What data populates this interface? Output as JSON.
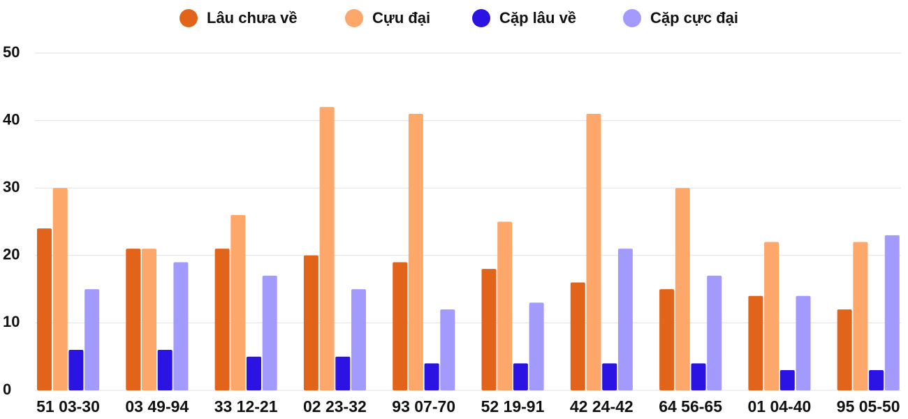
{
  "chart_data": {
    "type": "bar",
    "categories": [
      "51 03-30",
      "03 49-94",
      "33 12-21",
      "02 23-32",
      "93 07-70",
      "52 19-91",
      "42 24-42",
      "64 56-65",
      "01 04-40",
      "95 05-50"
    ],
    "series": [
      {
        "name": "Lâu chưa về",
        "color": "#e2641a",
        "values": [
          24,
          21,
          21,
          20,
          19,
          18,
          16,
          15,
          14,
          12
        ]
      },
      {
        "name": "Cựu đại",
        "color": "#fda76b",
        "values": [
          30,
          21,
          26,
          42,
          41,
          25,
          41,
          30,
          22,
          22
        ]
      },
      {
        "name": "Cặp lâu về",
        "color": "#2a13e3",
        "values": [
          6,
          6,
          5,
          5,
          4,
          4,
          4,
          4,
          3,
          3
        ]
      },
      {
        "name": "Cặp cực đại",
        "color": "#a29afd",
        "values": [
          15,
          19,
          17,
          15,
          12,
          13,
          21,
          17,
          14,
          23
        ]
      }
    ],
    "ylim": [
      0,
      50
    ],
    "yticks": [
      0,
      10,
      20,
      30,
      40,
      50
    ],
    "grid": true,
    "legend": "top"
  }
}
